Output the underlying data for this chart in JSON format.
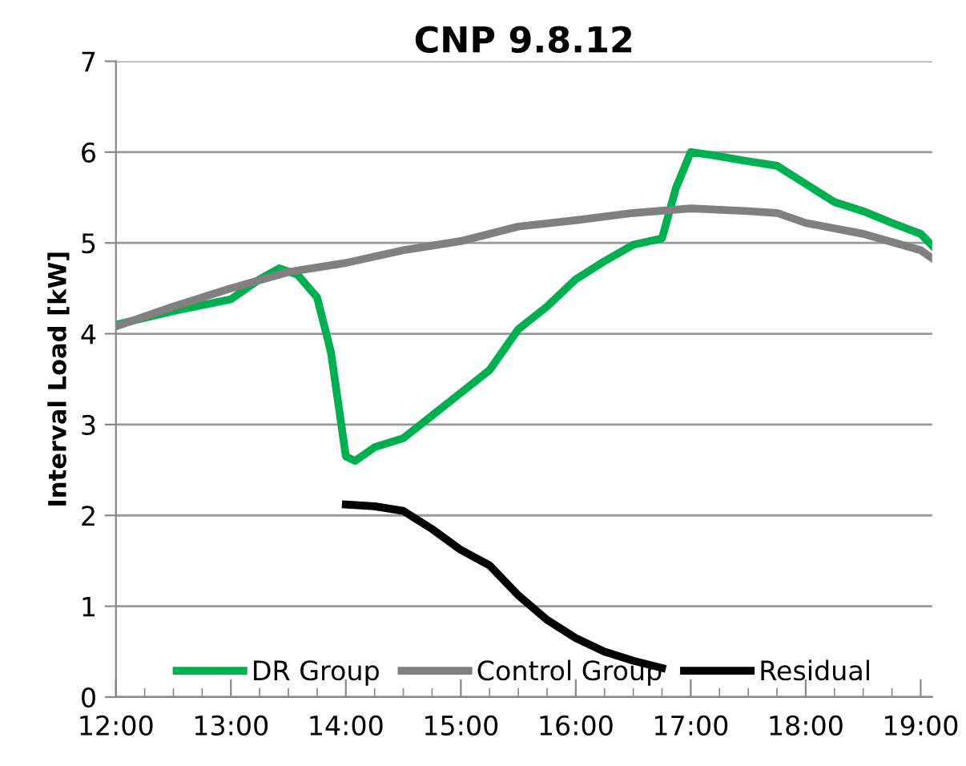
{
  "chart_data": {
    "type": "line",
    "title": "CNP 9.8.12",
    "ylabel": "Interval Load [kW]",
    "xlim": [
      12,
      19.1
    ],
    "ylim": [
      0,
      7
    ],
    "yticks": [
      0,
      1,
      2,
      3,
      4,
      5,
      6,
      7
    ],
    "xticks": [
      {
        "value": 12,
        "label": "12:00"
      },
      {
        "value": 12.25,
        "label": null
      },
      {
        "value": 12.5,
        "label": null
      },
      {
        "value": 12.75,
        "label": null
      },
      {
        "value": 13,
        "label": "13:00"
      },
      {
        "value": 13.25,
        "label": null
      },
      {
        "value": 13.5,
        "label": null
      },
      {
        "value": 13.75,
        "label": null
      },
      {
        "value": 14,
        "label": "14:00"
      },
      {
        "value": 14.25,
        "label": null
      },
      {
        "value": 14.5,
        "label": null
      },
      {
        "value": 14.75,
        "label": null
      },
      {
        "value": 15,
        "label": "15:00"
      },
      {
        "value": 15.25,
        "label": null
      },
      {
        "value": 15.5,
        "label": null
      },
      {
        "value": 15.75,
        "label": null
      },
      {
        "value": 16,
        "label": "16:00"
      },
      {
        "value": 16.25,
        "label": null
      },
      {
        "value": 16.5,
        "label": null
      },
      {
        "value": 16.75,
        "label": null
      },
      {
        "value": 17,
        "label": "17:00"
      },
      {
        "value": 17.25,
        "label": null
      },
      {
        "value": 17.5,
        "label": null
      },
      {
        "value": 17.75,
        "label": null
      },
      {
        "value": 18,
        "label": "18:00"
      },
      {
        "value": 18.25,
        "label": null
      },
      {
        "value": 18.5,
        "label": null
      },
      {
        "value": 18.75,
        "label": null
      },
      {
        "value": 19,
        "label": "19:00"
      }
    ],
    "grid": "y",
    "legend": "bottom",
    "marker": "none",
    "line_style": "solid",
    "series": [
      {
        "name": "DR Group",
        "color": "#00b050",
        "x": [
          12,
          12.5,
          13,
          13.25,
          13.42,
          13.58,
          13.75,
          13.87,
          14,
          14.08,
          14.25,
          14.5,
          14.75,
          15,
          15.25,
          15.5,
          15.75,
          16,
          16.25,
          16.5,
          16.75,
          16.87,
          17,
          17.17,
          17.5,
          17.75,
          18,
          18.25,
          18.5,
          18.75,
          19,
          19.1
        ],
        "values": [
          4.1,
          4.25,
          4.38,
          4.6,
          4.72,
          4.65,
          4.4,
          3.8,
          2.65,
          2.6,
          2.75,
          2.85,
          3.1,
          3.35,
          3.6,
          4.05,
          4.3,
          4.6,
          4.8,
          4.98,
          5.05,
          5.6,
          6.0,
          5.97,
          5.9,
          5.85,
          5.65,
          5.45,
          5.35,
          5.22,
          5.1,
          4.97
        ]
      },
      {
        "name": "Control Group",
        "color": "#808080",
        "x": [
          12,
          12.5,
          13,
          13.5,
          14,
          14.5,
          15,
          15.5,
          16,
          16.5,
          17,
          17.5,
          17.75,
          18,
          18.5,
          19,
          19.1
        ],
        "values": [
          4.08,
          4.3,
          4.5,
          4.68,
          4.78,
          4.92,
          5.02,
          5.18,
          5.25,
          5.33,
          5.38,
          5.35,
          5.33,
          5.22,
          5.1,
          4.92,
          4.83
        ]
      },
      {
        "name": "Residual",
        "color": "#000000",
        "x": [
          14,
          14.25,
          14.5,
          14.75,
          15,
          15.25,
          15.5,
          15.75,
          16,
          16.25,
          16.5,
          16.75
        ],
        "values": [
          2.12,
          2.1,
          2.05,
          1.85,
          1.62,
          1.45,
          1.12,
          0.85,
          0.65,
          0.5,
          0.4,
          0.32
        ]
      }
    ]
  }
}
